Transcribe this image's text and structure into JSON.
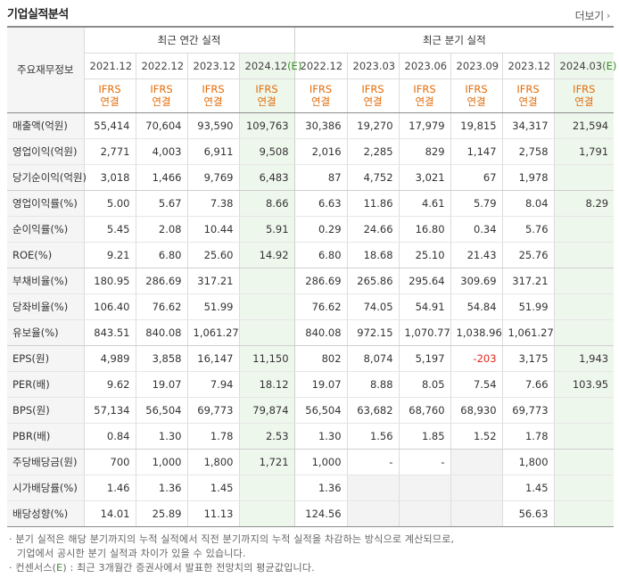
{
  "title": "기업실적분석",
  "more_label": "더보기",
  "more_arrow": "›",
  "label_header": "주요재무정보",
  "groups": {
    "annual": "최근 연간 실적",
    "quarterly": "최근 분기 실적"
  },
  "annual_dates": [
    "2021.12",
    "2022.12",
    "2023.12",
    "2024.12(E)"
  ],
  "quarter_dates": [
    "2022.12",
    "2023.03",
    "2023.06",
    "2023.09",
    "2023.12",
    "2024.03(E)"
  ],
  "ifrs": {
    "line1": "IFRS",
    "line2": "연결"
  },
  "colors": {
    "ifrs": "#e36c09",
    "negative": "#e0261b",
    "estimate_bg": "#eef7ec",
    "estimate_mark": "#3a8a2a"
  },
  "rows": [
    {
      "label": "매출액(억원)",
      "values": [
        "55,414",
        "70,604",
        "93,590",
        "109,763",
        "30,386",
        "19,270",
        "17,979",
        "19,815",
        "34,317",
        "21,594"
      ]
    },
    {
      "label": "영업이익(억원)",
      "values": [
        "2,771",
        "4,003",
        "6,911",
        "9,508",
        "2,016",
        "2,285",
        "829",
        "1,147",
        "2,758",
        "1,791"
      ]
    },
    {
      "label": "당기순이익(억원)",
      "values": [
        "3,018",
        "1,466",
        "9,769",
        "6,483",
        "87",
        "4,752",
        "3,021",
        "67",
        "1,978",
        ""
      ]
    },
    {
      "label": "영업이익률(%)",
      "values": [
        "5.00",
        "5.67",
        "7.38",
        "8.66",
        "6.63",
        "11.86",
        "4.61",
        "5.79",
        "8.04",
        "8.29"
      ]
    },
    {
      "label": "순이익률(%)",
      "values": [
        "5.45",
        "2.08",
        "10.44",
        "5.91",
        "0.29",
        "24.66",
        "16.80",
        "0.34",
        "5.76",
        ""
      ]
    },
    {
      "label": "ROE(%)",
      "values": [
        "9.21",
        "6.80",
        "25.60",
        "14.92",
        "6.80",
        "18.68",
        "25.10",
        "21.43",
        "25.76",
        ""
      ]
    },
    {
      "label": "부채비율(%)",
      "values": [
        "180.95",
        "286.69",
        "317.21",
        "",
        "286.69",
        "265.86",
        "295.64",
        "309.69",
        "317.21",
        ""
      ]
    },
    {
      "label": "당좌비율(%)",
      "values": [
        "106.40",
        "76.62",
        "51.99",
        "",
        "76.62",
        "74.05",
        "54.91",
        "54.84",
        "51.99",
        ""
      ]
    },
    {
      "label": "유보율(%)",
      "values": [
        "843.51",
        "840.08",
        "1,061.27",
        "",
        "840.08",
        "972.15",
        "1,070.77",
        "1,038.96",
        "1,061.27",
        ""
      ]
    },
    {
      "label": "EPS(원)",
      "values": [
        "4,989",
        "3,858",
        "16,147",
        "11,150",
        "802",
        "8,074",
        "5,197",
        "-203",
        "3,175",
        "1,943"
      ]
    },
    {
      "label": "PER(배)",
      "values": [
        "9.62",
        "19.07",
        "7.94",
        "18.12",
        "19.07",
        "8.88",
        "8.05",
        "7.54",
        "7.66",
        "103.95"
      ]
    },
    {
      "label": "BPS(원)",
      "values": [
        "57,134",
        "56,504",
        "69,773",
        "79,874",
        "56,504",
        "63,682",
        "68,760",
        "68,930",
        "69,773",
        ""
      ]
    },
    {
      "label": "PBR(배)",
      "values": [
        "0.84",
        "1.30",
        "1.78",
        "2.53",
        "1.30",
        "1.56",
        "1.85",
        "1.52",
        "1.78",
        ""
      ]
    },
    {
      "label": "주당배당금(원)",
      "values": [
        "700",
        "1,000",
        "1,800",
        "1,721",
        "1,000",
        "-",
        "-",
        "",
        "1,800",
        ""
      ]
    },
    {
      "label": "시가배당률(%)",
      "values": [
        "1.46",
        "1.36",
        "1.45",
        "",
        "1.36",
        "",
        "",
        "",
        "1.45",
        ""
      ]
    },
    {
      "label": "배당성향(%)",
      "values": [
        "14.01",
        "25.89",
        "11.13",
        "",
        "124.56",
        "",
        "",
        "",
        "56.63",
        ""
      ]
    }
  ],
  "notes": [
    "· 분기 실적은 해당 분기까지의 누적 실적에서 직전 분기까지의 누적 실적을 차감하는 방식으로 계산되므로,",
    "  기업에서 공시한 분기 실적과 차이가 있을 수 있습니다.",
    {
      "pre": "· 컨센서스(",
      "mark": "E",
      "post": ") : 최근 3개월간 증권사에서 발표한 전망치의 평균값입니다."
    }
  ]
}
